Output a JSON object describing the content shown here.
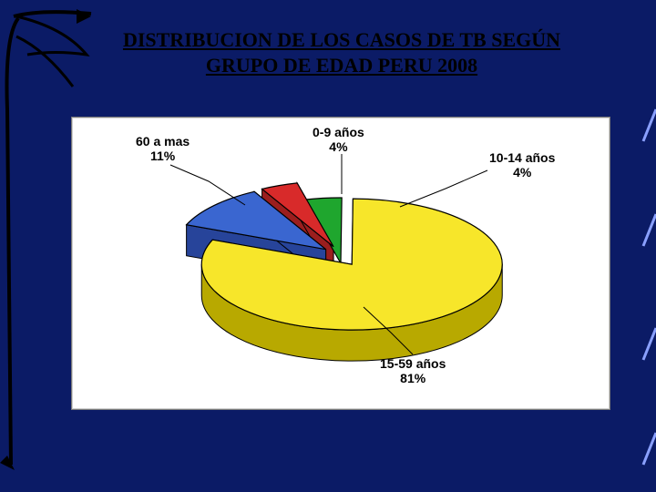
{
  "title_line1": "DISTRIBUCION DE LOS CASOS DE TB SEGÚN",
  "title_line2": "GRUPO DE EDAD PERU 2008",
  "background_color": "#0b1b66",
  "panel_background": "#ffffff",
  "chart": {
    "type": "pie",
    "exploded_slices": [
      0,
      1,
      3
    ],
    "slices": [
      {
        "key": "60plus",
        "label": "60 a mas",
        "percent": "11%",
        "value": 11,
        "top_color": "#3a66d0",
        "side_color": "#27449a"
      },
      {
        "key": "0-9",
        "label": "0-9 años",
        "percent": "4%",
        "value": 4,
        "top_color": "#d82a2a",
        "side_color": "#9b1e1e"
      },
      {
        "key": "10-14",
        "label": "10-14 años",
        "percent": "4%",
        "value": 4,
        "top_color": "#1fa62e",
        "side_color": "#157020"
      },
      {
        "key": "15-59",
        "label": "15-59 años",
        "percent": "81%",
        "value": 81,
        "top_color": "#f7e62a",
        "side_color": "#b8a900"
      }
    ],
    "outline_color": "#000000",
    "label_font_family": "Arial",
    "label_font_weight": "bold",
    "label_font_size_pt": 11,
    "leader_color": "#000000"
  }
}
